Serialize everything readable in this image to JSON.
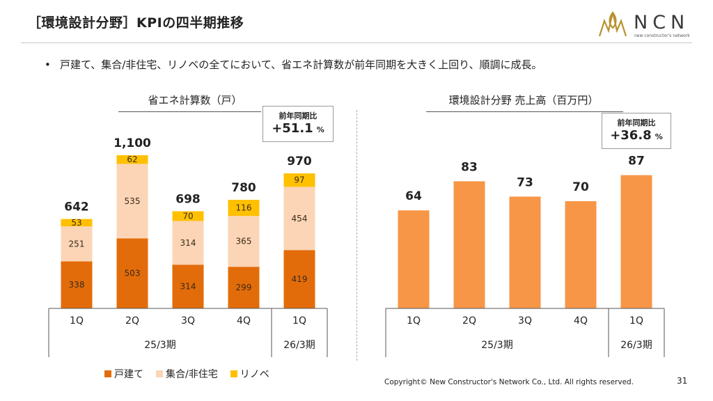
{
  "header": {
    "title": "［環境設計分野］KPIの四半期推移",
    "logo_text": "NCN",
    "logo_sub": "new constructor's network"
  },
  "bullet": {
    "marker": "•",
    "text": "戸建て、集合/非住宅、リノベの全てにおいて、省エネ計算数が前年同期を大きく上回り、順調に成長。"
  },
  "left_chart": {
    "title": "省エネ計算数（戸）",
    "badge_label": "前年同期比",
    "badge_value": "+51.1",
    "badge_unit": "%"
  },
  "right_chart": {
    "title": "環境設計分野 売上高（百万円）",
    "badge_label": "前年同期比",
    "badge_value": "+36.8",
    "badge_unit": "%"
  },
  "colors": {
    "detached": "#e36c0a",
    "collective": "#fbd5b5",
    "renovation": "#ffc000",
    "sales": "#f79646"
  },
  "legend": [
    "戸建て",
    "集合/非住宅",
    "リノベ"
  ],
  "chart_data": [
    {
      "type": "bar",
      "stacked": true,
      "title": "省エネ計算数（戸）",
      "categories": [
        "1Q",
        "2Q",
        "3Q",
        "4Q",
        "1Q"
      ],
      "period_groups": [
        {
          "label": "25/3期",
          "categories": [
            "1Q",
            "2Q",
            "3Q",
            "4Q"
          ]
        },
        {
          "label": "26/3期",
          "categories": [
            "1Q"
          ]
        }
      ],
      "series": [
        {
          "name": "戸建て",
          "values": [
            338,
            503,
            314,
            299,
            419
          ]
        },
        {
          "name": "集合/非住宅",
          "values": [
            251,
            535,
            314,
            365,
            454
          ]
        },
        {
          "name": "リノベ",
          "values": [
            53,
            62,
            70,
            116,
            97
          ]
        }
      ],
      "totals": [
        642,
        1100,
        698,
        780,
        970
      ],
      "total_labels": [
        "642",
        "1,100",
        "698",
        "780",
        "970"
      ],
      "ylim": [
        0,
        1200
      ]
    },
    {
      "type": "bar",
      "title": "環境設計分野 売上高（百万円）",
      "categories": [
        "1Q",
        "2Q",
        "3Q",
        "4Q",
        "1Q"
      ],
      "period_groups": [
        {
          "label": "25/3期",
          "categories": [
            "1Q",
            "2Q",
            "3Q",
            "4Q"
          ]
        },
        {
          "label": "26/3期",
          "categories": [
            "1Q"
          ]
        }
      ],
      "values": [
        64,
        83,
        73,
        70,
        87
      ],
      "ylim": [
        0,
        115
      ]
    }
  ],
  "footer": {
    "copyright": "Copyright© New Constructor's Network Co., Ltd. All rights reserved.",
    "page": "31"
  }
}
